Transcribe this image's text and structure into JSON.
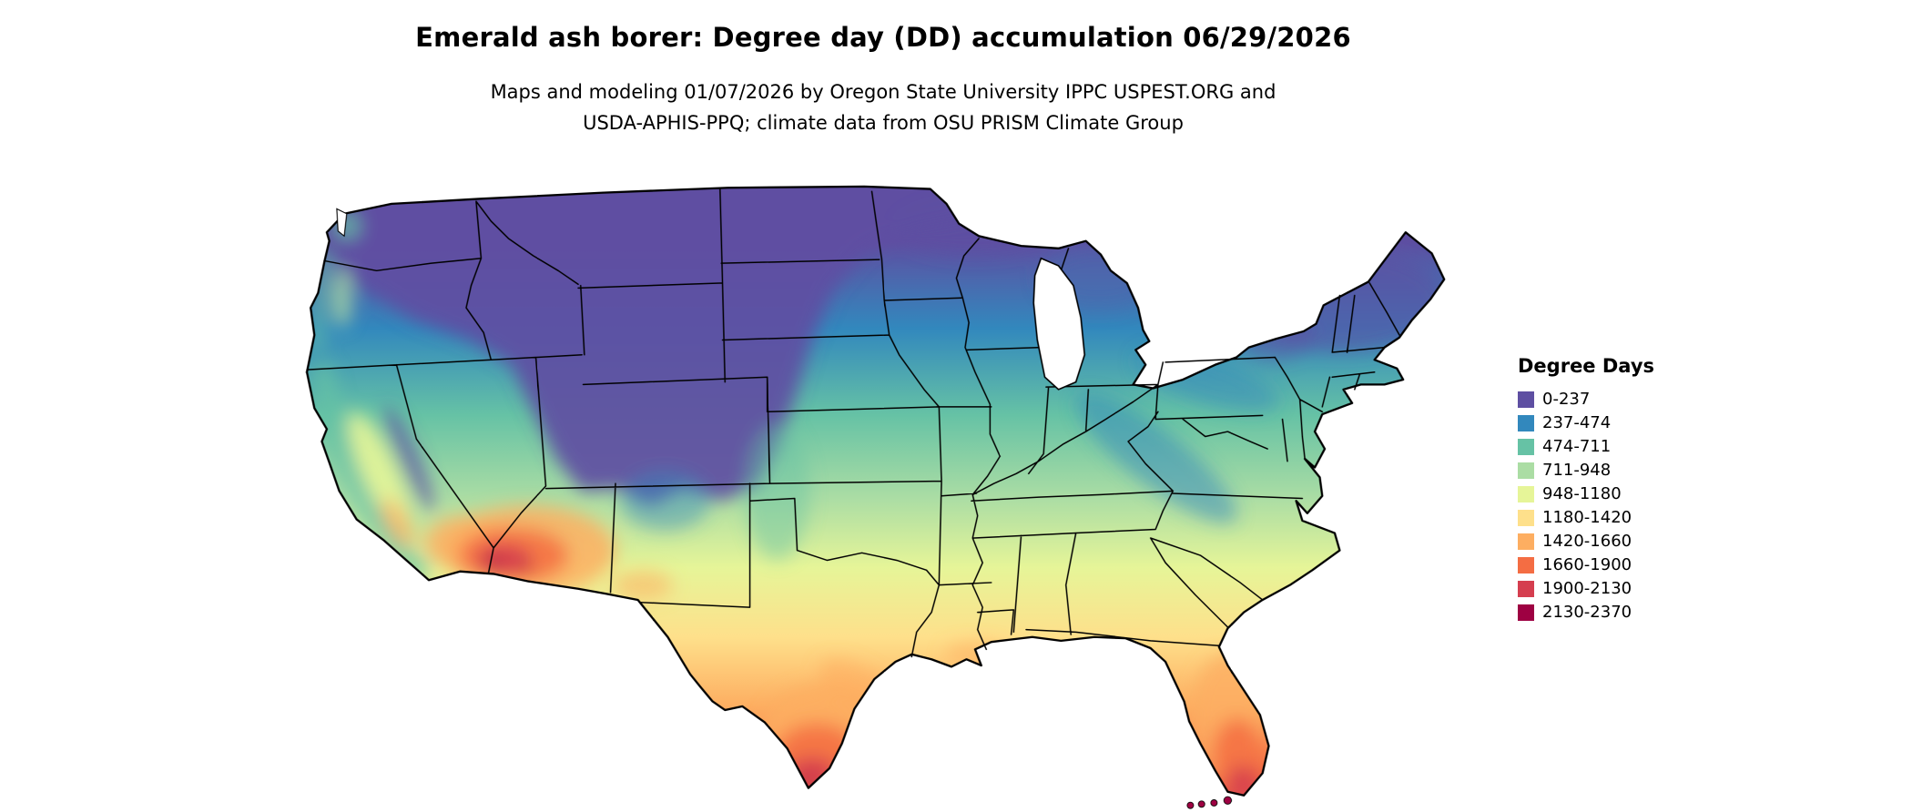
{
  "header": {
    "title": "Emerald ash borer: Degree day (DD) accumulation 06/29/2026",
    "subtitle_line1": "Maps and modeling 01/07/2026 by Oregon State University IPPC USPEST.ORG and",
    "subtitle_line2": "USDA-APHIS-PPQ; climate data from OSU PRISM Climate Group"
  },
  "legend": {
    "title": "Degree Days",
    "items": [
      {
        "label": "0-237",
        "color": "#5e4fa2"
      },
      {
        "label": "237-474",
        "color": "#3288bd"
      },
      {
        "label": "474-711",
        "color": "#66c2a5"
      },
      {
        "label": "711-948",
        "color": "#abdda4"
      },
      {
        "label": "948-1180",
        "color": "#e6f598"
      },
      {
        "label": "1180-1420",
        "color": "#fee08b"
      },
      {
        "label": "1420-1660",
        "color": "#fdae61"
      },
      {
        "label": "1660-1900",
        "color": "#f46d43"
      },
      {
        "label": "1900-2130",
        "color": "#d53e4f"
      },
      {
        "label": "2130-2370",
        "color": "#9e0142"
      }
    ]
  },
  "chart_data": {
    "type": "choropleth_map",
    "region": "Continental United States with state boundaries",
    "variable": "Emerald ash borer degree day (DD) accumulation",
    "date": "06/29/2026",
    "legend_title": "Degree Days",
    "bins": [
      {
        "range": "0-237",
        "color": "#5e4fa2"
      },
      {
        "range": "237-474",
        "color": "#3288bd"
      },
      {
        "range": "474-711",
        "color": "#66c2a5"
      },
      {
        "range": "711-948",
        "color": "#abdda4"
      },
      {
        "range": "948-1180",
        "color": "#e6f598"
      },
      {
        "range": "1180-1420",
        "color": "#fee08b"
      },
      {
        "range": "1420-1660",
        "color": "#fdae61"
      },
      {
        "range": "1660-1900",
        "color": "#f46d43"
      },
      {
        "range": "1900-2130",
        "color": "#d53e4f"
      },
      {
        "range": "2130-2370",
        "color": "#9e0142"
      }
    ],
    "pattern_notes": "Low DD (purple/blue) across northern states and mountain west; mid DD (teal/green) across midwest and mid-Atlantic; high DD (yellow/orange) across the south; highest DD (red/maroon) in SW Arizona deserts, south Texas and south Florida/Keys"
  }
}
